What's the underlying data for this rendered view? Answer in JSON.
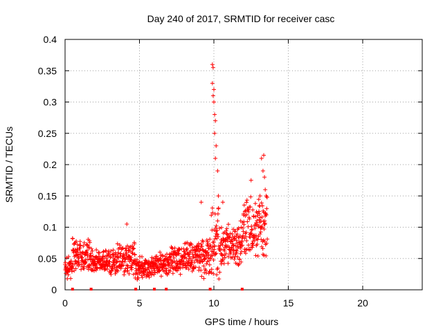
{
  "chart_data": {
    "type": "scatter",
    "title": "Day 240 of 2017, SRMTID for receiver casc",
    "xlabel": "GPS time / hours",
    "ylabel": "SRMTID / TECUs",
    "xlim": [
      0,
      24
    ],
    "ylim": [
      0,
      0.4
    ],
    "x_ticks": [
      0,
      5,
      10,
      15,
      20
    ],
    "x_tick_labels": [
      "0",
      "5",
      "10",
      "15",
      "20"
    ],
    "y_ticks": [
      0,
      0.05,
      0.1,
      0.15,
      0.2,
      0.25,
      0.3,
      0.35,
      0.4
    ],
    "y_tick_labels": [
      "0",
      "0.05",
      "0.1",
      "0.15",
      "0.2",
      "0.25",
      "0.3",
      "0.35",
      "0.4"
    ],
    "grid": true,
    "marker": "+",
    "color": "#ff0000",
    "series": [
      {
        "name": "SRMTID",
        "segments": [
          {
            "x_start": 0.0,
            "x_end": 0.5,
            "base": 0.035,
            "spread": 0.015
          },
          {
            "x_start": 0.5,
            "x_end": 1.8,
            "base": 0.055,
            "spread": 0.02
          },
          {
            "x_start": 1.8,
            "x_end": 3.5,
            "base": 0.045,
            "spread": 0.015
          },
          {
            "x_start": 3.5,
            "x_end": 4.7,
            "base": 0.05,
            "spread": 0.02
          },
          {
            "x_start": 4.7,
            "x_end": 6.0,
            "base": 0.035,
            "spread": 0.015
          },
          {
            "x_start": 6.0,
            "x_end": 7.0,
            "base": 0.04,
            "spread": 0.015
          },
          {
            "x_start": 7.0,
            "x_end": 9.0,
            "base": 0.05,
            "spread": 0.018
          },
          {
            "x_start": 9.0,
            "x_end": 9.8,
            "base": 0.055,
            "spread": 0.025
          },
          {
            "x_start": 9.8,
            "x_end": 10.4,
            "base": 0.08,
            "spread": 0.05
          },
          {
            "x_start": 10.4,
            "x_end": 11.9,
            "base": 0.07,
            "spread": 0.025
          },
          {
            "x_start": 11.9,
            "x_end": 13.6,
            "base": 0.1,
            "spread": 0.035
          }
        ],
        "peaks": [
          {
            "x": 9.9,
            "y": 0.36
          },
          {
            "x": 9.95,
            "y": 0.355
          },
          {
            "x": 9.9,
            "y": 0.33
          },
          {
            "x": 10.0,
            "y": 0.32
          },
          {
            "x": 9.95,
            "y": 0.31
          },
          {
            "x": 10.0,
            "y": 0.3
          },
          {
            "x": 10.05,
            "y": 0.28
          },
          {
            "x": 10.1,
            "y": 0.27
          },
          {
            "x": 10.05,
            "y": 0.25
          },
          {
            "x": 10.15,
            "y": 0.23
          },
          {
            "x": 10.1,
            "y": 0.21
          },
          {
            "x": 10.25,
            "y": 0.19
          },
          {
            "x": 10.3,
            "y": 0.15
          },
          {
            "x": 13.2,
            "y": 0.21
          },
          {
            "x": 13.35,
            "y": 0.215
          },
          {
            "x": 13.3,
            "y": 0.19
          },
          {
            "x": 13.4,
            "y": 0.18
          },
          {
            "x": 13.45,
            "y": 0.16
          },
          {
            "x": 13.1,
            "y": 0.15
          },
          {
            "x": 12.5,
            "y": 0.175
          },
          {
            "x": 9.15,
            "y": 0.14
          },
          {
            "x": 4.15,
            "y": 0.105
          },
          {
            "x": 10.6,
            "y": 0.14
          },
          {
            "x": 11.8,
            "y": 0.11
          }
        ]
      }
    ],
    "zero_markers_x": [
      0.5,
      1.75,
      4.75,
      6.0,
      6.8,
      9.75,
      11.9
    ]
  }
}
